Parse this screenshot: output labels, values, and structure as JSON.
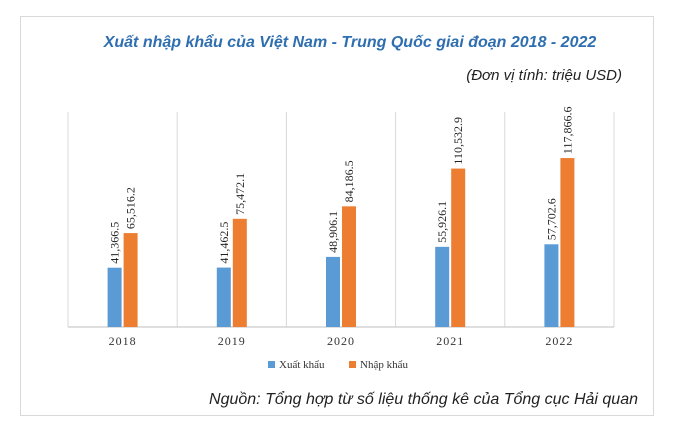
{
  "chart_data": {
    "type": "bar",
    "title": "Xuất nhập khẩu của Việt Nam - Trung Quốc giai đoạn 2018 - 2022",
    "unit_label": "(Đơn vị tính: triệu USD)",
    "categories": [
      "2018",
      "2019",
      "2020",
      "2021",
      "2022"
    ],
    "series": [
      {
        "name": "Xuất khẩu",
        "color": "#5b9bd5",
        "values": [
          41366.5,
          41462.5,
          48906.1,
          55926.1,
          57702.6
        ],
        "labels": [
          "41,366.5",
          "41,462.5",
          "48,906.1",
          "55,926.1",
          "57,702.6"
        ]
      },
      {
        "name": "Nhập khẩu",
        "color": "#ed7d31",
        "values": [
          65516.2,
          75472.1,
          84186.5,
          110532.9,
          117866.6
        ],
        "labels": [
          "65,516.2",
          "75,472.1",
          "84,186.5",
          "110,532.9",
          "117,866.6"
        ]
      }
    ],
    "ylim": [
      0,
      150000
    ],
    "xlabel": "",
    "ylabel": "",
    "grid": "vertical category separators",
    "legend": "bottom-center",
    "source": "Nguồn: Tổng hợp từ số liệu thống kê của Tổng cục Hải quan"
  }
}
